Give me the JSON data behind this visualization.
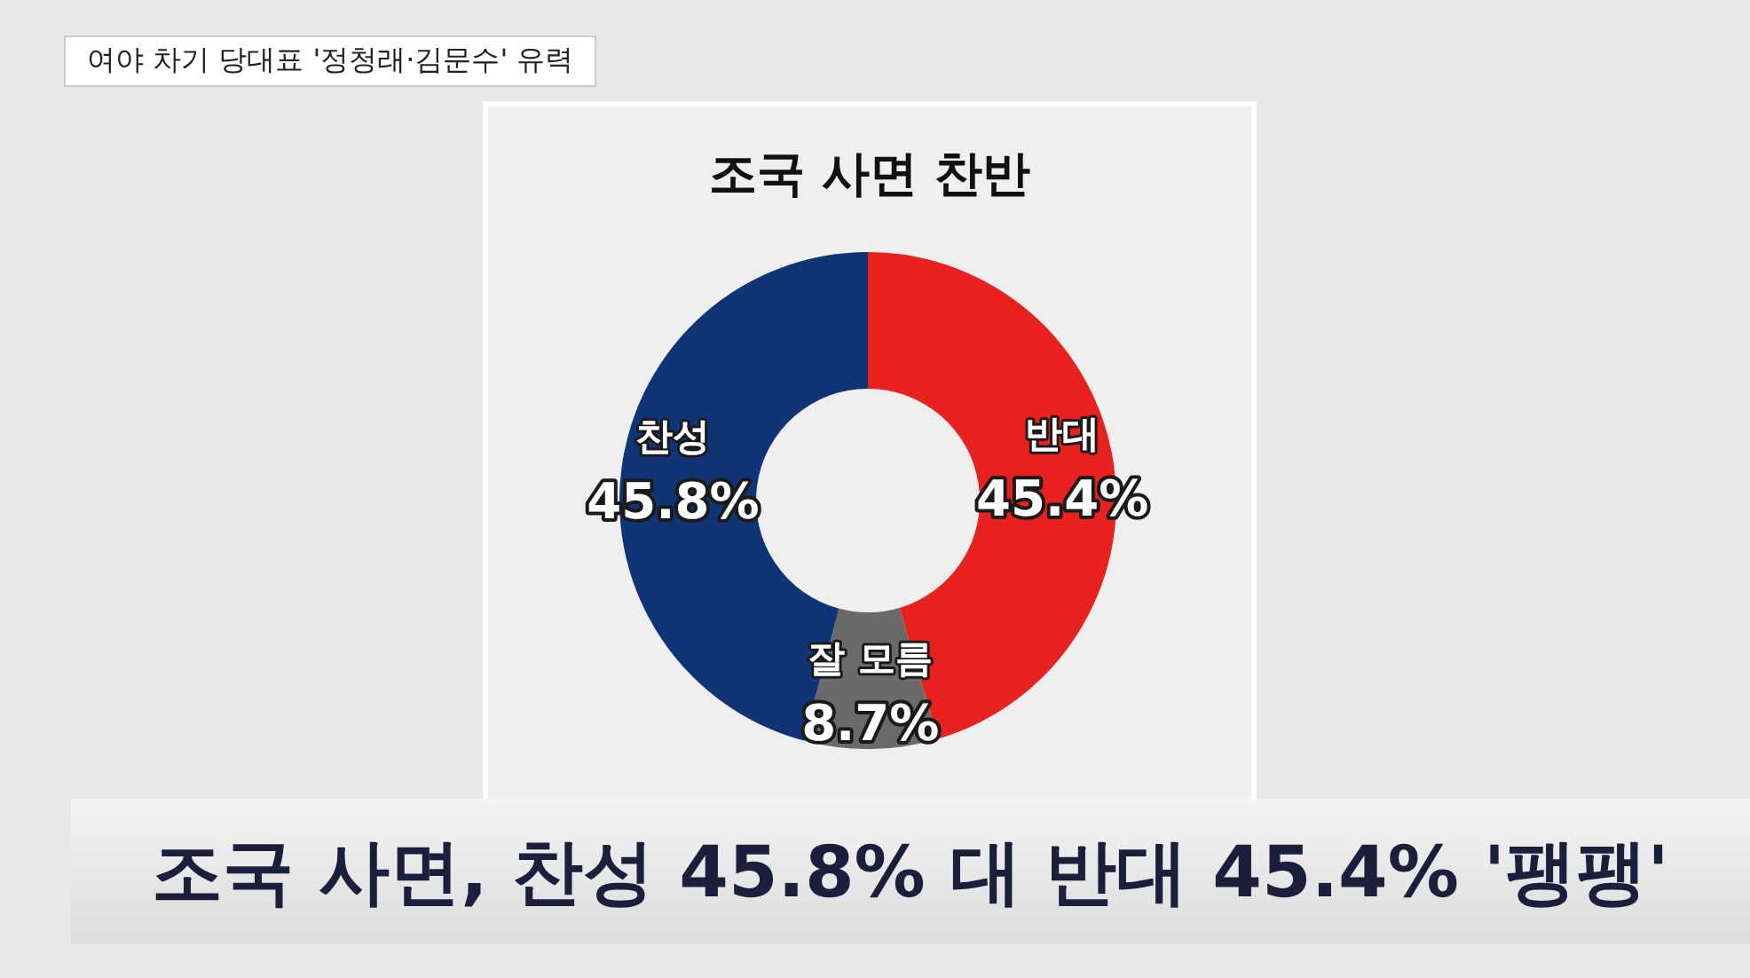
{
  "chart_data": {
    "type": "donut",
    "title": "조국 사면 찬반",
    "categories": [
      "반대",
      "잘 모름",
      "찬성"
    ],
    "values": [
      45.4,
      8.7,
      45.8
    ],
    "colors": [
      "#e8211e",
      "#6a6a6a",
      "#0f3577"
    ],
    "value_labels": [
      "45.4%",
      "8.7%",
      "45.8%"
    ],
    "legend": false,
    "annotations": [
      "여야 차기 당대표 '정청래·김문수' 유력",
      "조국 사면, 찬성 45.8% 대 반대 45.4% '팽팽'"
    ]
  }
}
